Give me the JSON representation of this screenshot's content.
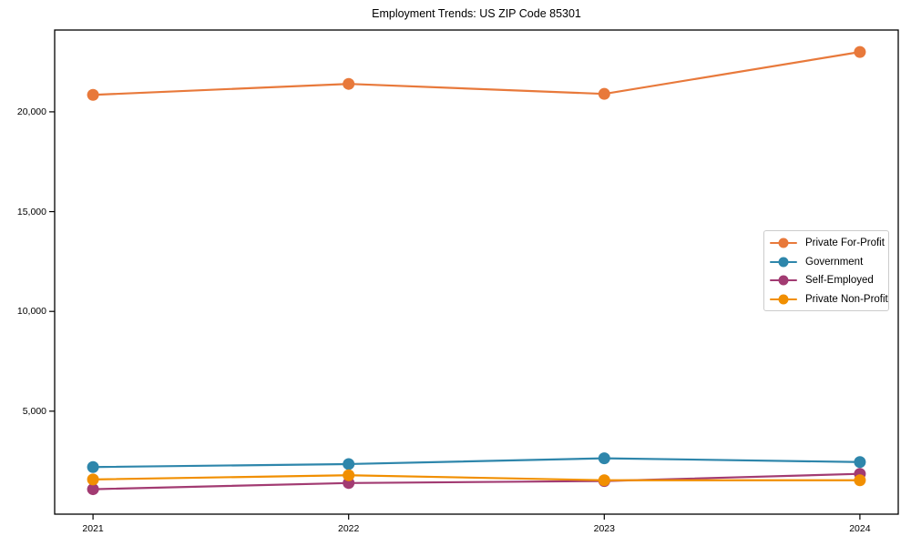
{
  "figure": {
    "background": "#ffffff",
    "spine_color": "#000000",
    "tick_color": "#000000"
  },
  "chart_data": {
    "type": "line",
    "title": "Employment Trends: US ZIP Code 85301",
    "xlabel": "",
    "ylabel": "",
    "x": [
      2021,
      2022,
      2023,
      2024
    ],
    "xticklabels": [
      "2021",
      "2022",
      "2023",
      "2024"
    ],
    "yticks": [
      5000,
      10000,
      15000,
      20000
    ],
    "yticklabels": [
      "5,000",
      "10,000",
      "15,000",
      "20,000"
    ],
    "xlim": [
      2020.85,
      2024.15
    ],
    "ylim": [
      -160,
      24100
    ],
    "grid": false,
    "legend_position": "center-right",
    "marker": "circle",
    "series": [
      {
        "name": "Private For-Profit",
        "color": "#E8793B",
        "values": [
          20850,
          21400,
          20900,
          23000
        ]
      },
      {
        "name": "Government",
        "color": "#2E86AB",
        "values": [
          2200,
          2350,
          2640,
          2450
        ]
      },
      {
        "name": "Self-Employed",
        "color": "#A23B72",
        "values": [
          1090,
          1400,
          1500,
          1860
        ]
      },
      {
        "name": "Private Non-Profit",
        "color": "#F18F01",
        "values": [
          1580,
          1790,
          1540,
          1540
        ]
      }
    ]
  }
}
